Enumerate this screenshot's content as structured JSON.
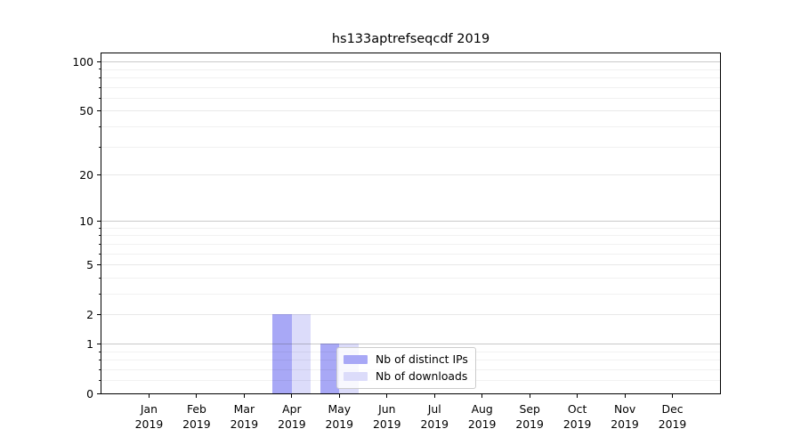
{
  "chart_data": {
    "type": "bar",
    "title": "hs133aptrefseqcdf 2019",
    "x_tick_months": [
      "Jan",
      "Feb",
      "Mar",
      "Apr",
      "May",
      "Jun",
      "Jul",
      "Aug",
      "Sep",
      "Oct",
      "Nov",
      "Dec"
    ],
    "x_tick_year": "2019",
    "series": [
      {
        "name": "Nb of distinct IPs",
        "color": "#a8a8f6",
        "values": [
          0,
          0,
          0,
          2,
          1,
          0,
          0,
          0,
          0,
          0,
          0,
          0
        ]
      },
      {
        "name": "Nb of downloads",
        "color": "#dcdcfa",
        "values": [
          0,
          0,
          0,
          2,
          1,
          0,
          0,
          0,
          0,
          0,
          0,
          0
        ]
      }
    ],
    "y_ticks": [
      0,
      1,
      2,
      5,
      10,
      20,
      50,
      100
    ],
    "y_minor_ticks": [
      0.2,
      0.4,
      0.6,
      0.8,
      3,
      4,
      6,
      7,
      8,
      9,
      30,
      40,
      60,
      70,
      80,
      90
    ],
    "y_power_ticks": [
      1,
      10,
      100
    ],
    "yscale": "symlog: position proportional to log10(1+value)",
    "ylim": [
      0,
      112
    ],
    "xlim": [
      -1,
      12
    ],
    "grid": "horizontal",
    "legend_position": "inside plot, lower center-left",
    "spine_color": "#000000",
    "background_color": "#ffffff"
  }
}
